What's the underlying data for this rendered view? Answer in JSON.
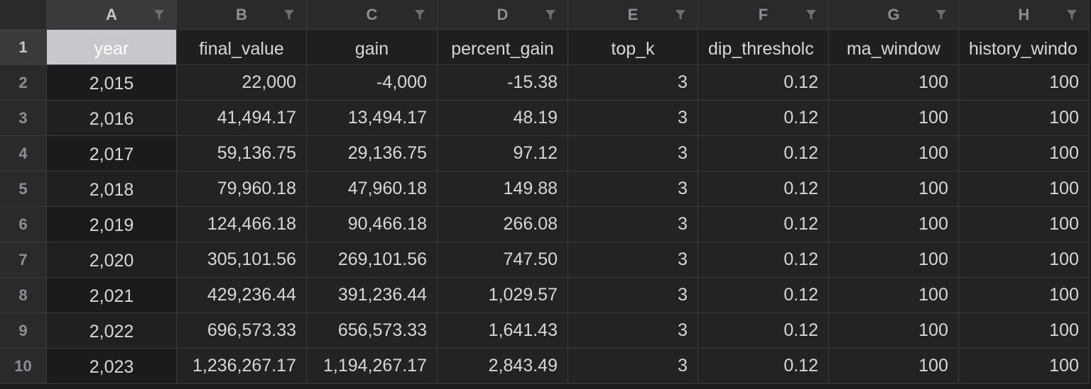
{
  "columns": [
    {
      "letter": "A",
      "header": "year"
    },
    {
      "letter": "B",
      "header": "final_value"
    },
    {
      "letter": "C",
      "header": "gain"
    },
    {
      "letter": "D",
      "header": "percent_gain"
    },
    {
      "letter": "E",
      "header": "top_k"
    },
    {
      "letter": "F",
      "header": "dip_thresholc"
    },
    {
      "letter": "G",
      "header": "ma_window"
    },
    {
      "letter": "H",
      "header": "history_windo"
    }
  ],
  "header_row_number": "1",
  "rows": [
    {
      "num": "2",
      "cells": [
        "2,015",
        "22,000",
        "-4,000",
        "-15.38",
        "3",
        "0.12",
        "100",
        "100"
      ]
    },
    {
      "num": "3",
      "cells": [
        "2,016",
        "41,494.17",
        "13,494.17",
        "48.19",
        "3",
        "0.12",
        "100",
        "100"
      ]
    },
    {
      "num": "4",
      "cells": [
        "2,017",
        "59,136.75",
        "29,136.75",
        "97.12",
        "3",
        "0.12",
        "100",
        "100"
      ]
    },
    {
      "num": "5",
      "cells": [
        "2,018",
        "79,960.18",
        "47,960.18",
        "149.88",
        "3",
        "0.12",
        "100",
        "100"
      ]
    },
    {
      "num": "6",
      "cells": [
        "2,019",
        "124,466.18",
        "90,466.18",
        "266.08",
        "3",
        "0.12",
        "100",
        "100"
      ]
    },
    {
      "num": "7",
      "cells": [
        "2,020",
        "305,101.56",
        "269,101.56",
        "747.50",
        "3",
        "0.12",
        "100",
        "100"
      ]
    },
    {
      "num": "8",
      "cells": [
        "2,021",
        "429,236.44",
        "391,236.44",
        "1,029.57",
        "3",
        "0.12",
        "100",
        "100"
      ]
    },
    {
      "num": "9",
      "cells": [
        "2,022",
        "696,573.33",
        "656,573.33",
        "1,641.43",
        "3",
        "0.12",
        "100",
        "100"
      ]
    },
    {
      "num": "10",
      "cells": [
        "2,023",
        "1,236,267.17",
        "1,194,267.17",
        "2,843.49",
        "3",
        "0.12",
        "100",
        "100"
      ]
    }
  ],
  "selected_cell": "A1",
  "colors": {
    "background": "#1b1b1d",
    "header_bg": "#2a2a2d",
    "selected_bg": "#c7c7cc",
    "text": "#d7d7da",
    "gridline": "#3a3a3e"
  },
  "icons": {
    "column_filter": "filter-icon"
  }
}
